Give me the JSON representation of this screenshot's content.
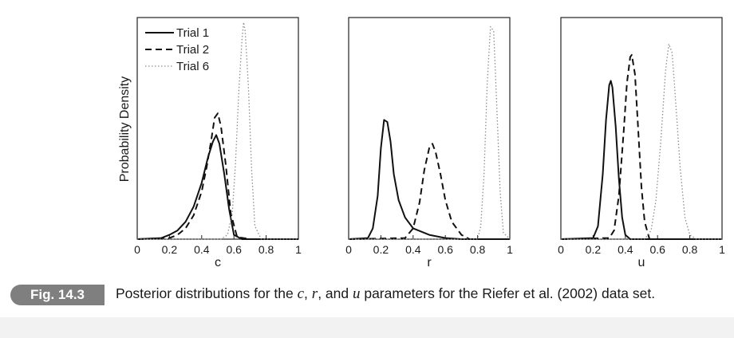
{
  "figure": {
    "label": "Fig. 14.3",
    "caption": {
      "part1": "Posterior distributions for the ",
      "var_c": "c",
      "sep1": ", ",
      "var_r": "r",
      "sep2": ", and ",
      "var_u": "u",
      "part2": " parameters for the Riefer et al. (2002) data set."
    }
  },
  "chart_data": [
    {
      "type": "line",
      "xlabel": "c",
      "ylabel": "Probability Density",
      "xlim": [
        0,
        1
      ],
      "x_ticks": [
        "0",
        "0.2",
        "0.4",
        "0.6",
        "0.8",
        "1"
      ],
      "legend": "top-left",
      "series": [
        {
          "name": "Trial 1",
          "style": "solid",
          "x": [
            0.0,
            0.15,
            0.2,
            0.25,
            0.3,
            0.35,
            0.4,
            0.44,
            0.47,
            0.49,
            0.51,
            0.54,
            0.57,
            0.6,
            0.65,
            1.0
          ],
          "y": [
            0,
            0.005,
            0.02,
            0.04,
            0.08,
            0.15,
            0.26,
            0.38,
            0.45,
            0.48,
            0.44,
            0.3,
            0.14,
            0.02,
            0,
            0
          ]
        },
        {
          "name": "Trial 2",
          "style": "dashed",
          "x": [
            0.0,
            0.2,
            0.25,
            0.3,
            0.35,
            0.4,
            0.43,
            0.46,
            0.48,
            0.5,
            0.52,
            0.55,
            0.58,
            0.62,
            0.7,
            1.0
          ],
          "y": [
            0,
            0.005,
            0.02,
            0.05,
            0.11,
            0.22,
            0.33,
            0.46,
            0.56,
            0.58,
            0.52,
            0.34,
            0.12,
            0.01,
            0,
            0
          ]
        },
        {
          "name": "Trial 6",
          "style": "dotted",
          "x": [
            0.0,
            0.52,
            0.56,
            0.59,
            0.61,
            0.63,
            0.65,
            0.66,
            0.67,
            0.69,
            0.71,
            0.73,
            0.77,
            1.0
          ],
          "y": [
            0,
            0,
            0.02,
            0.12,
            0.35,
            0.68,
            0.92,
            1.0,
            0.96,
            0.7,
            0.32,
            0.06,
            0,
            0
          ]
        }
      ]
    },
    {
      "type": "line",
      "xlabel": "r",
      "ylabel": "",
      "xlim": [
        0,
        1
      ],
      "x_ticks": [
        "0",
        "0.2",
        "0.4",
        "0.6",
        "0.8",
        "1"
      ],
      "series": [
        {
          "name": "Trial 1",
          "style": "solid",
          "x": [
            0.0,
            0.12,
            0.15,
            0.18,
            0.2,
            0.22,
            0.24,
            0.26,
            0.28,
            0.31,
            0.35,
            0.4,
            0.5,
            0.6,
            0.7,
            1.0
          ],
          "y": [
            0,
            0.005,
            0.05,
            0.2,
            0.42,
            0.55,
            0.54,
            0.45,
            0.3,
            0.18,
            0.1,
            0.05,
            0.02,
            0.005,
            0,
            0
          ]
        },
        {
          "name": "Trial 2",
          "style": "dashed",
          "x": [
            0.0,
            0.35,
            0.4,
            0.44,
            0.47,
            0.5,
            0.52,
            0.54,
            0.57,
            0.6,
            0.64,
            0.7,
            0.75,
            1.0
          ],
          "y": [
            0,
            0.005,
            0.05,
            0.17,
            0.32,
            0.42,
            0.44,
            0.4,
            0.3,
            0.18,
            0.08,
            0.02,
            0,
            0
          ]
        },
        {
          "name": "Trial 6",
          "style": "dotted",
          "x": [
            0.0,
            0.8,
            0.82,
            0.84,
            0.86,
            0.88,
            0.9,
            0.92,
            0.94,
            0.96,
            1.0
          ],
          "y": [
            0,
            0,
            0.06,
            0.3,
            0.72,
            0.98,
            0.96,
            0.6,
            0.22,
            0.03,
            0
          ]
        }
      ]
    },
    {
      "type": "line",
      "xlabel": "u",
      "ylabel": "",
      "xlim": [
        0,
        1
      ],
      "x_ticks": [
        "0",
        "0.2",
        "0.4",
        "0.6",
        "0.8",
        "1"
      ],
      "series": [
        {
          "name": "Trial 1",
          "style": "solid",
          "x": [
            0.0,
            0.2,
            0.23,
            0.26,
            0.28,
            0.3,
            0.31,
            0.32,
            0.34,
            0.36,
            0.38,
            0.4,
            0.43,
            1.0
          ],
          "y": [
            0,
            0.005,
            0.06,
            0.3,
            0.55,
            0.71,
            0.73,
            0.7,
            0.52,
            0.28,
            0.1,
            0.02,
            0,
            0
          ]
        },
        {
          "name": "Trial 2",
          "style": "dashed",
          "x": [
            0.0,
            0.3,
            0.33,
            0.36,
            0.39,
            0.41,
            0.43,
            0.44,
            0.46,
            0.48,
            0.5,
            0.52,
            0.55,
            1.0
          ],
          "y": [
            0,
            0.005,
            0.04,
            0.2,
            0.5,
            0.72,
            0.84,
            0.85,
            0.76,
            0.5,
            0.24,
            0.08,
            0,
            0
          ]
        },
        {
          "name": "Trial 6",
          "style": "dotted",
          "x": [
            0.0,
            0.52,
            0.56,
            0.59,
            0.62,
            0.65,
            0.67,
            0.69,
            0.71,
            0.74,
            0.77,
            0.8,
            0.84,
            1.0
          ],
          "y": [
            0,
            0,
            0.04,
            0.18,
            0.45,
            0.78,
            0.9,
            0.86,
            0.66,
            0.33,
            0.1,
            0.02,
            0,
            0
          ]
        }
      ]
    }
  ]
}
